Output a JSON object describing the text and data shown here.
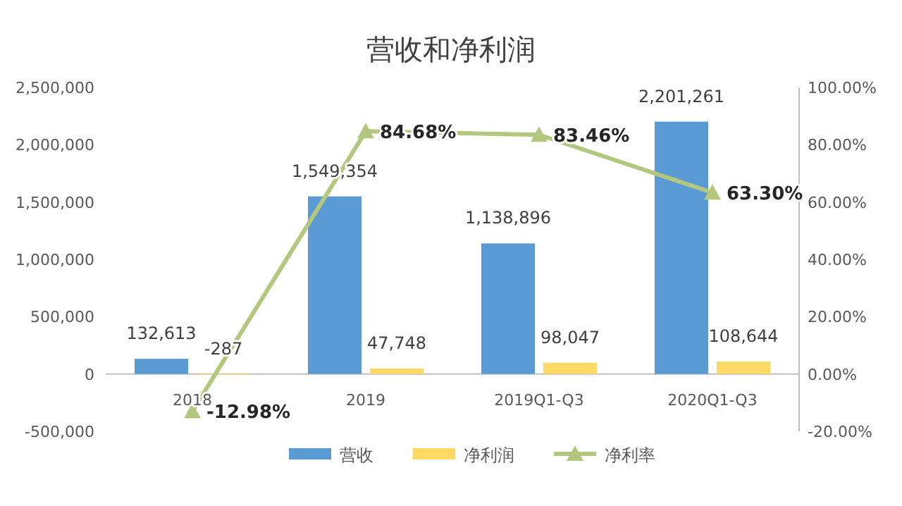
{
  "chart_data": {
    "type": "bar",
    "title": "营收和净利润",
    "categories": [
      "2018",
      "2019",
      "2019Q1-Q3",
      "2020Q1-Q3"
    ],
    "series": [
      {
        "name": "营收",
        "color": "#5b9bd5",
        "values": [
          132613,
          1549354,
          1138896,
          2201261
        ],
        "value_labels": [
          "132,613",
          "1,549,354",
          "1,138,896",
          "2,201,261"
        ]
      },
      {
        "name": "净利润",
        "color": "#ffd966",
        "values": [
          -287,
          47748,
          98047,
          108644
        ],
        "value_labels": [
          "-287",
          "47,748",
          "98,047",
          "108,644"
        ]
      },
      {
        "name": "净利率",
        "type": "line",
        "axis": "y2",
        "color": "#b4c77f",
        "marker": "triangle",
        "values": [
          -12.98,
          84.68,
          83.46,
          63.3
        ],
        "value_labels": [
          "-12.98%",
          "84.68%",
          "83.46%",
          "63.30%"
        ]
      }
    ],
    "ylim": [
      -500000,
      2500000
    ],
    "yticks": [
      {
        "value": -500000,
        "label": "-500,000"
      },
      {
        "value": 0,
        "label": "0"
      },
      {
        "value": 500000,
        "label": "500,000"
      },
      {
        "value": 1000000,
        "label": "1,000,000"
      },
      {
        "value": 1500000,
        "label": "1,500,000"
      },
      {
        "value": 2000000,
        "label": "2,000,000"
      },
      {
        "value": 2500000,
        "label": "2,500,000"
      }
    ],
    "y2lim": [
      -20,
      100
    ],
    "y2ticks": [
      {
        "value": -20,
        "label": "-20.00%"
      },
      {
        "value": 0,
        "label": "0.00%"
      },
      {
        "value": 20,
        "label": "20.00%"
      },
      {
        "value": 40,
        "label": "40.00%"
      },
      {
        "value": 60,
        "label": "60.00%"
      },
      {
        "value": 80,
        "label": "80.00%"
      },
      {
        "value": 100,
        "label": "100.00%"
      }
    ],
    "legend": "bottom",
    "grid": false
  }
}
